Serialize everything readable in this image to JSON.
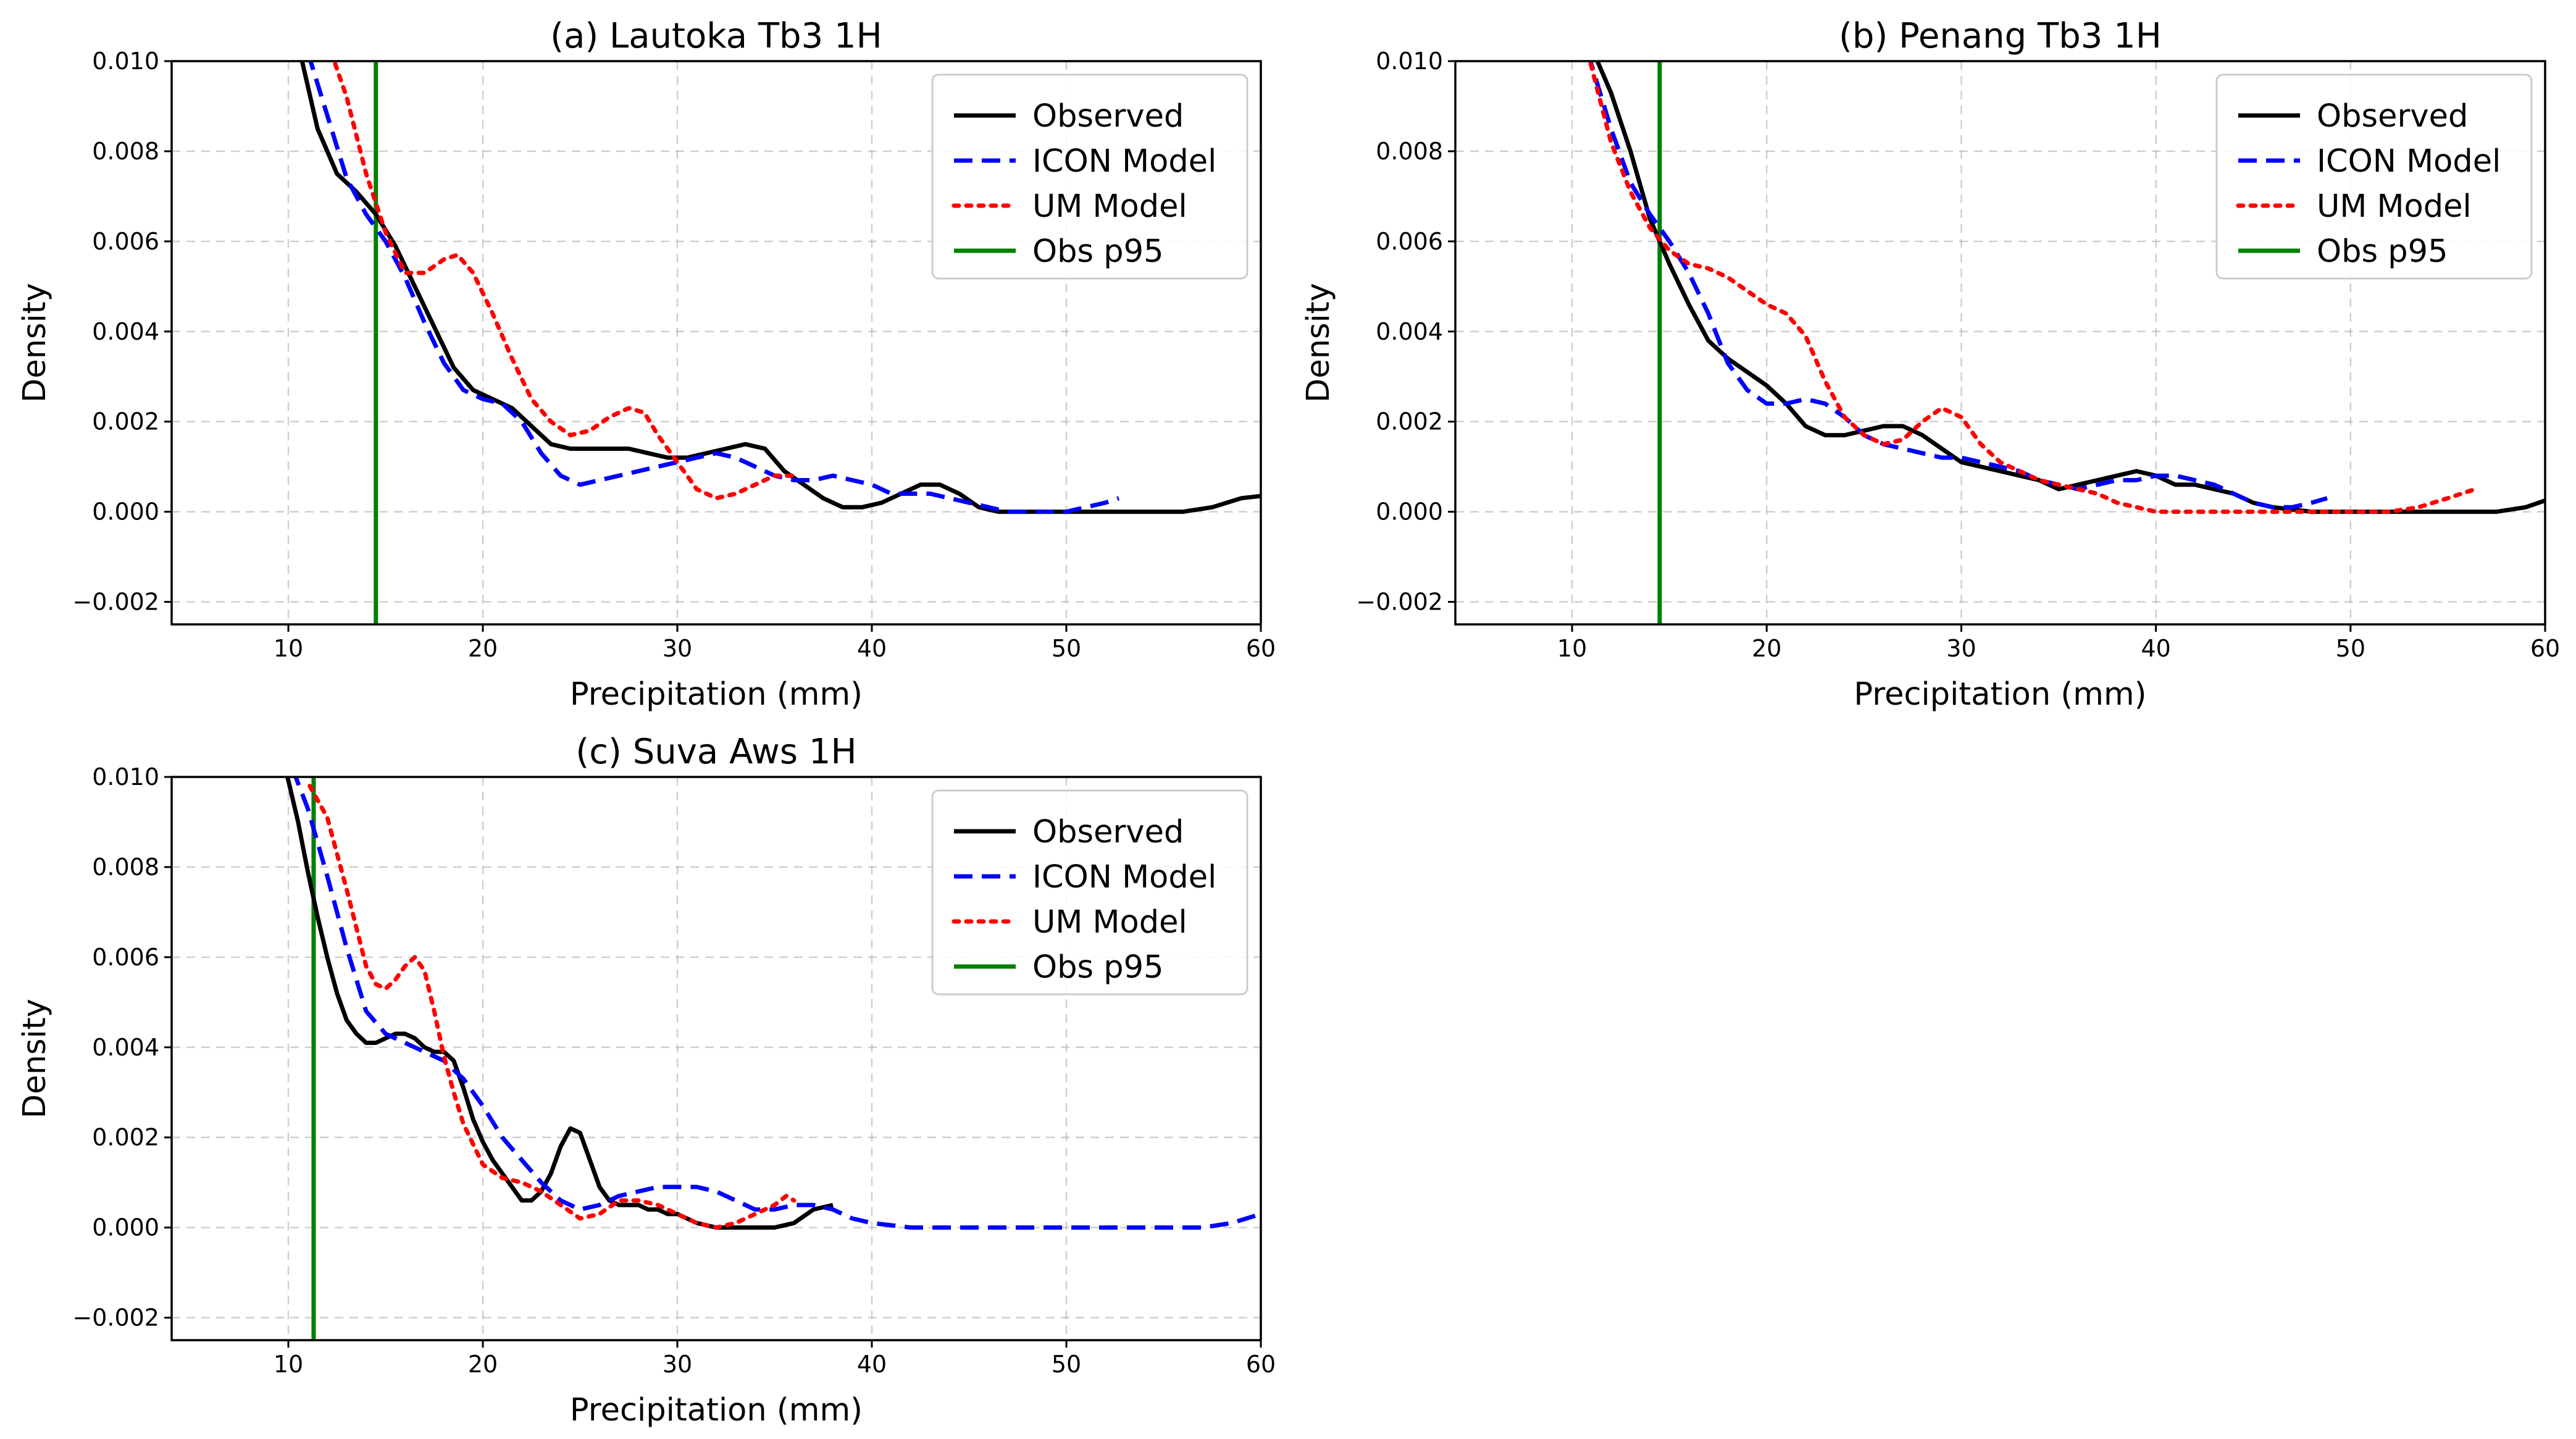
{
  "chart_data": [
    {
      "type": "line",
      "title": "(a) Lautoka Tb3 1H",
      "xlabel": "Precipitation (mm)",
      "ylabel": "Density",
      "xlim": [
        4,
        60
      ],
      "ylim": [
        -0.0025,
        0.01
      ],
      "xticks": [
        "10",
        "20",
        "30",
        "40",
        "50",
        "60"
      ],
      "yticks": [
        "0.010",
        "0.008",
        "0.006",
        "0.004",
        "0.002",
        "0.000",
        "−0.002"
      ],
      "grid": true,
      "legend_position": "top-right",
      "vline": {
        "name": "Obs p95",
        "x": 14.5,
        "color": "#008000"
      },
      "series": [
        {
          "name": "Observed",
          "color": "#000000",
          "style": "solid",
          "x": [
            10.6,
            11.5,
            12.5,
            13.5,
            14.5,
            15.5,
            16.5,
            17.5,
            18.5,
            19.5,
            20.5,
            21.5,
            22.5,
            23.5,
            24.5,
            25.5,
            26.5,
            27.5,
            28.5,
            29.5,
            30.5,
            31.5,
            32.5,
            33.5,
            34.5,
            35.5,
            36.5,
            37.5,
            38.5,
            39.5,
            40.5,
            41.5,
            42.5,
            43.5,
            44.5,
            45.5,
            46.5,
            48,
            50,
            52,
            54,
            56,
            57.5,
            59,
            60
          ],
          "y": [
            0.0102,
            0.0085,
            0.0075,
            0.0071,
            0.0066,
            0.0059,
            0.005,
            0.0041,
            0.0032,
            0.0027,
            0.0025,
            0.0023,
            0.0019,
            0.0015,
            0.0014,
            0.0014,
            0.0014,
            0.0014,
            0.0013,
            0.0012,
            0.0012,
            0.0013,
            0.0014,
            0.0015,
            0.0014,
            0.0009,
            0.0006,
            0.0003,
            0.0001,
            0.0001,
            0.0002,
            0.0004,
            0.0006,
            0.0006,
            0.0004,
            0.0001,
            0.0,
            0.0,
            0.0,
            0.0,
            0.0,
            0.0,
            0.0001,
            0.0003,
            0.00035
          ]
        },
        {
          "name": "ICON Model",
          "color": "#0000ff",
          "style": "dashed",
          "x": [
            11.0,
            12.0,
            13.0,
            14.0,
            15.0,
            16.0,
            17.0,
            18.0,
            19.0,
            20.0,
            21.0,
            22.0,
            23.0,
            24.0,
            25.0,
            26.0,
            27.0,
            28.0,
            29.0,
            30.0,
            31.0,
            32.0,
            33.0,
            34.0,
            35.0,
            36.0,
            37.0,
            38.0,
            39.0,
            40.0,
            41.0,
            42.0,
            43.0,
            44.0,
            45.0,
            46.0,
            47.0,
            48.0,
            49.0,
            50.0,
            51.0,
            52.0,
            52.7
          ],
          "y": [
            0.0102,
            0.0088,
            0.0074,
            0.0066,
            0.006,
            0.0052,
            0.0042,
            0.0033,
            0.0027,
            0.0025,
            0.0024,
            0.002,
            0.0013,
            0.0008,
            0.0006,
            0.0007,
            0.0008,
            0.0009,
            0.001,
            0.0011,
            0.0012,
            0.0013,
            0.0012,
            0.001,
            0.0008,
            0.0007,
            0.0007,
            0.0008,
            0.0007,
            0.0006,
            0.0004,
            0.0004,
            0.0004,
            0.0003,
            0.0002,
            0.0001,
            0.0,
            0.0,
            0.0,
            0.0,
            0.0001,
            0.0002,
            0.0003
          ]
        },
        {
          "name": "UM Model",
          "color": "#ff0000",
          "style": "dotted",
          "x": [
            12.2,
            13.0,
            14.0,
            15.0,
            16.0,
            17.0,
            18.0,
            18.7,
            19.5,
            20.5,
            21.5,
            22.5,
            23.5,
            24.5,
            25.5,
            26.5,
            27.5,
            28.3,
            29.0,
            30.0,
            31.0,
            32.0,
            33.0,
            34.0,
            35.0,
            36.0
          ],
          "y": [
            0.0102,
            0.0092,
            0.0075,
            0.0062,
            0.0053,
            0.0053,
            0.0056,
            0.0057,
            0.0053,
            0.0044,
            0.0034,
            0.0025,
            0.002,
            0.0017,
            0.0018,
            0.0021,
            0.0023,
            0.0022,
            0.0017,
            0.0011,
            0.0005,
            0.0003,
            0.0004,
            0.0006,
            0.0008,
            0.0008
          ]
        }
      ]
    },
    {
      "type": "line",
      "title": "(b) Penang Tb3 1H",
      "xlabel": "Precipitation (mm)",
      "ylabel": "Density",
      "xlim": [
        4,
        60
      ],
      "ylim": [
        -0.0025,
        0.01
      ],
      "xticks": [
        "10",
        "20",
        "30",
        "40",
        "50",
        "60"
      ],
      "yticks": [
        "0.010",
        "0.008",
        "0.006",
        "0.004",
        "0.002",
        "0.000",
        "−0.002"
      ],
      "grid": true,
      "legend_position": "top-right",
      "vline": {
        "name": "Obs p95",
        "x": 14.5,
        "color": "#008000"
      },
      "series": [
        {
          "name": "Observed",
          "color": "#000000",
          "style": "solid",
          "x": [
            11.1,
            12.0,
            13.0,
            14.0,
            15.0,
            16.0,
            17.0,
            18.0,
            19.0,
            20.0,
            21.0,
            22.0,
            23.0,
            24.0,
            25.0,
            26.0,
            27.0,
            28.0,
            29.0,
            30.0,
            31.0,
            32.0,
            33.0,
            34.0,
            35.0,
            36.0,
            37.0,
            38.0,
            39.0,
            40.0,
            41.0,
            42.0,
            43.0,
            44.0,
            45.0,
            46.0,
            48.0,
            50.0,
            52.0,
            54.0,
            56.0,
            57.5,
            59.0,
            60.0
          ],
          "y": [
            0.0102,
            0.0093,
            0.008,
            0.0065,
            0.0055,
            0.0046,
            0.0038,
            0.0034,
            0.0031,
            0.0028,
            0.0024,
            0.0019,
            0.0017,
            0.0017,
            0.0018,
            0.0019,
            0.0019,
            0.0017,
            0.0014,
            0.0011,
            0.001,
            0.0009,
            0.0008,
            0.0007,
            0.0005,
            0.0006,
            0.0007,
            0.0008,
            0.0009,
            0.0008,
            0.0006,
            0.0006,
            0.0005,
            0.0004,
            0.0002,
            0.0001,
            0.0,
            0.0,
            0.0,
            0.0,
            0.0,
            0.0,
            0.0001,
            0.00025
          ]
        },
        {
          "name": "ICON Model",
          "color": "#0000ff",
          "style": "dashed",
          "x": [
            10.8,
            12.0,
            13.0,
            14.0,
            15.0,
            16.0,
            17.0,
            18.0,
            19.0,
            20.0,
            21.0,
            22.0,
            23.0,
            24.0,
            25.0,
            26.0,
            27.0,
            28.0,
            29.0,
            30.0,
            31.0,
            32.0,
            33.0,
            34.0,
            35.0,
            36.0,
            37.0,
            38.0,
            39.0,
            40.0,
            41.0,
            42.0,
            43.0,
            44.0,
            45.0,
            46.0,
            47.0,
            48.0,
            48.8
          ],
          "y": [
            0.0102,
            0.0085,
            0.0073,
            0.0066,
            0.006,
            0.0053,
            0.0044,
            0.0033,
            0.0027,
            0.0024,
            0.0024,
            0.0025,
            0.0024,
            0.0021,
            0.0017,
            0.0015,
            0.0014,
            0.0013,
            0.0012,
            0.0012,
            0.0011,
            0.001,
            0.0009,
            0.0007,
            0.0006,
            0.0005,
            0.0006,
            0.0007,
            0.0007,
            0.0008,
            0.0008,
            0.0007,
            0.0006,
            0.0004,
            0.0002,
            0.0001,
            0.0001,
            0.0002,
            0.0003
          ]
        },
        {
          "name": "UM Model",
          "color": "#ff0000",
          "style": "dotted",
          "x": [
            10.8,
            12.0,
            13.0,
            14.0,
            15.0,
            16.0,
            17.0,
            18.0,
            19.0,
            20.0,
            21.0,
            22.0,
            23.0,
            24.0,
            25.0,
            26.0,
            27.0,
            28.0,
            29.0,
            30.0,
            31.0,
            32.0,
            33.0,
            34.0,
            35.0,
            36.0,
            37.0,
            38.0,
            39.0,
            40.0,
            42.0,
            44.0,
            46.0,
            48.0,
            50.0,
            52.0,
            53.5,
            55.0,
            56.4
          ],
          "y": [
            0.0102,
            0.0082,
            0.0071,
            0.0063,
            0.0058,
            0.0055,
            0.0054,
            0.0052,
            0.0049,
            0.0046,
            0.0044,
            0.0039,
            0.0029,
            0.0021,
            0.0017,
            0.0015,
            0.0016,
            0.002,
            0.0023,
            0.0021,
            0.0015,
            0.0011,
            0.0009,
            0.0007,
            0.0006,
            0.0005,
            0.0004,
            0.0002,
            0.0001,
            0.0,
            0.0,
            0.0,
            0.0,
            0.0,
            0.0,
            0.0,
            0.0001,
            0.0003,
            0.0005
          ]
        }
      ]
    },
    {
      "type": "line",
      "title": "(c) Suva Aws 1H",
      "xlabel": "Precipitation (mm)",
      "ylabel": "Density",
      "xlim": [
        4,
        60
      ],
      "ylim": [
        -0.0025,
        0.01
      ],
      "xticks": [
        "10",
        "20",
        "30",
        "40",
        "50",
        "60"
      ],
      "yticks": [
        "0.010",
        "0.008",
        "0.006",
        "0.004",
        "0.002",
        "0.000",
        "−0.002"
      ],
      "grid": true,
      "legend_position": "top-right",
      "vline": {
        "name": "Obs p95",
        "x": 11.3,
        "color": "#008000"
      },
      "series": [
        {
          "name": "Observed",
          "color": "#000000",
          "style": "solid",
          "x": [
            9.9,
            10.5,
            11.0,
            11.5,
            12.0,
            12.5,
            13.0,
            13.5,
            14.0,
            14.5,
            15.0,
            15.5,
            16.0,
            16.5,
            17.0,
            17.5,
            18.0,
            18.5,
            19.0,
            19.5,
            20.0,
            20.5,
            21.0,
            21.5,
            22.0,
            22.5,
            23.0,
            23.5,
            24.0,
            24.5,
            25.0,
            25.5,
            26.0,
            26.5,
            27.0,
            27.5,
            28.0,
            28.5,
            29.0,
            29.5,
            30.0,
            30.5,
            31.0,
            32.0,
            33.0,
            34.0,
            35.0,
            36.0,
            37.0,
            38.0
          ],
          "y": [
            0.0101,
            0.009,
            0.0079,
            0.0069,
            0.006,
            0.0052,
            0.0046,
            0.0043,
            0.0041,
            0.0041,
            0.0042,
            0.0043,
            0.0043,
            0.0042,
            0.004,
            0.0039,
            0.0039,
            0.0037,
            0.0031,
            0.0024,
            0.0019,
            0.0015,
            0.0012,
            0.0009,
            0.0006,
            0.0006,
            0.0008,
            0.0012,
            0.0018,
            0.0022,
            0.0021,
            0.0015,
            0.0009,
            0.0006,
            0.0005,
            0.0005,
            0.0005,
            0.0004,
            0.0004,
            0.0003,
            0.0003,
            0.0002,
            0.0001,
            0.0,
            0.0,
            0.0,
            0.0,
            0.0001,
            0.0004,
            0.0005
          ]
        },
        {
          "name": "ICON Model",
          "color": "#0000ff",
          "style": "dashed",
          "x": [
            10.2,
            11.0,
            12.0,
            13.0,
            14.0,
            15.0,
            16.0,
            17.0,
            18.0,
            19.0,
            20.0,
            21.0,
            22.0,
            23.0,
            24.0,
            25.0,
            26.0,
            27.0,
            28.0,
            29.0,
            30.0,
            31.0,
            32.0,
            33.0,
            34.0,
            35.0,
            36.0,
            37.0,
            38.0,
            39.0,
            40.0,
            42.0,
            45.0,
            48.0,
            51.0,
            54.0,
            57.0,
            58.5,
            60.0
          ],
          "y": [
            0.0102,
            0.0093,
            0.0078,
            0.0062,
            0.0048,
            0.0043,
            0.0041,
            0.0039,
            0.0037,
            0.0033,
            0.0027,
            0.002,
            0.0015,
            0.001,
            0.0006,
            0.0004,
            0.0005,
            0.0007,
            0.0008,
            0.0009,
            0.0009,
            0.0009,
            0.0008,
            0.0006,
            0.0004,
            0.0004,
            0.0005,
            0.0005,
            0.0004,
            0.0002,
            0.0001,
            0.0,
            0.0,
            0.0,
            0.0,
            0.0,
            0.0,
            0.0001,
            0.0003
          ]
        },
        {
          "name": "UM Model",
          "color": "#ff0000",
          "style": "dotted",
          "x": [
            11.1,
            12.0,
            13.0,
            14.0,
            14.5,
            15.0,
            15.5,
            16.0,
            16.5,
            17.0,
            17.5,
            18.0,
            18.5,
            19.0,
            20.0,
            21.0,
            22.0,
            23.0,
            24.0,
            25.0,
            26.0,
            27.0,
            28.0,
            29.0,
            30.0,
            31.0,
            32.0,
            33.0,
            34.0,
            35.0,
            35.6,
            36.0
          ],
          "y": [
            0.0098,
            0.0091,
            0.0075,
            0.0058,
            0.0054,
            0.0053,
            0.0055,
            0.0058,
            0.006,
            0.0057,
            0.0048,
            0.0038,
            0.003,
            0.0023,
            0.0014,
            0.0011,
            0.001,
            0.0008,
            0.0005,
            0.0002,
            0.0003,
            0.0006,
            0.0006,
            0.0005,
            0.0003,
            0.0001,
            0.0,
            0.0001,
            0.0003,
            0.0005,
            0.0007,
            0.0006
          ]
        }
      ]
    }
  ]
}
